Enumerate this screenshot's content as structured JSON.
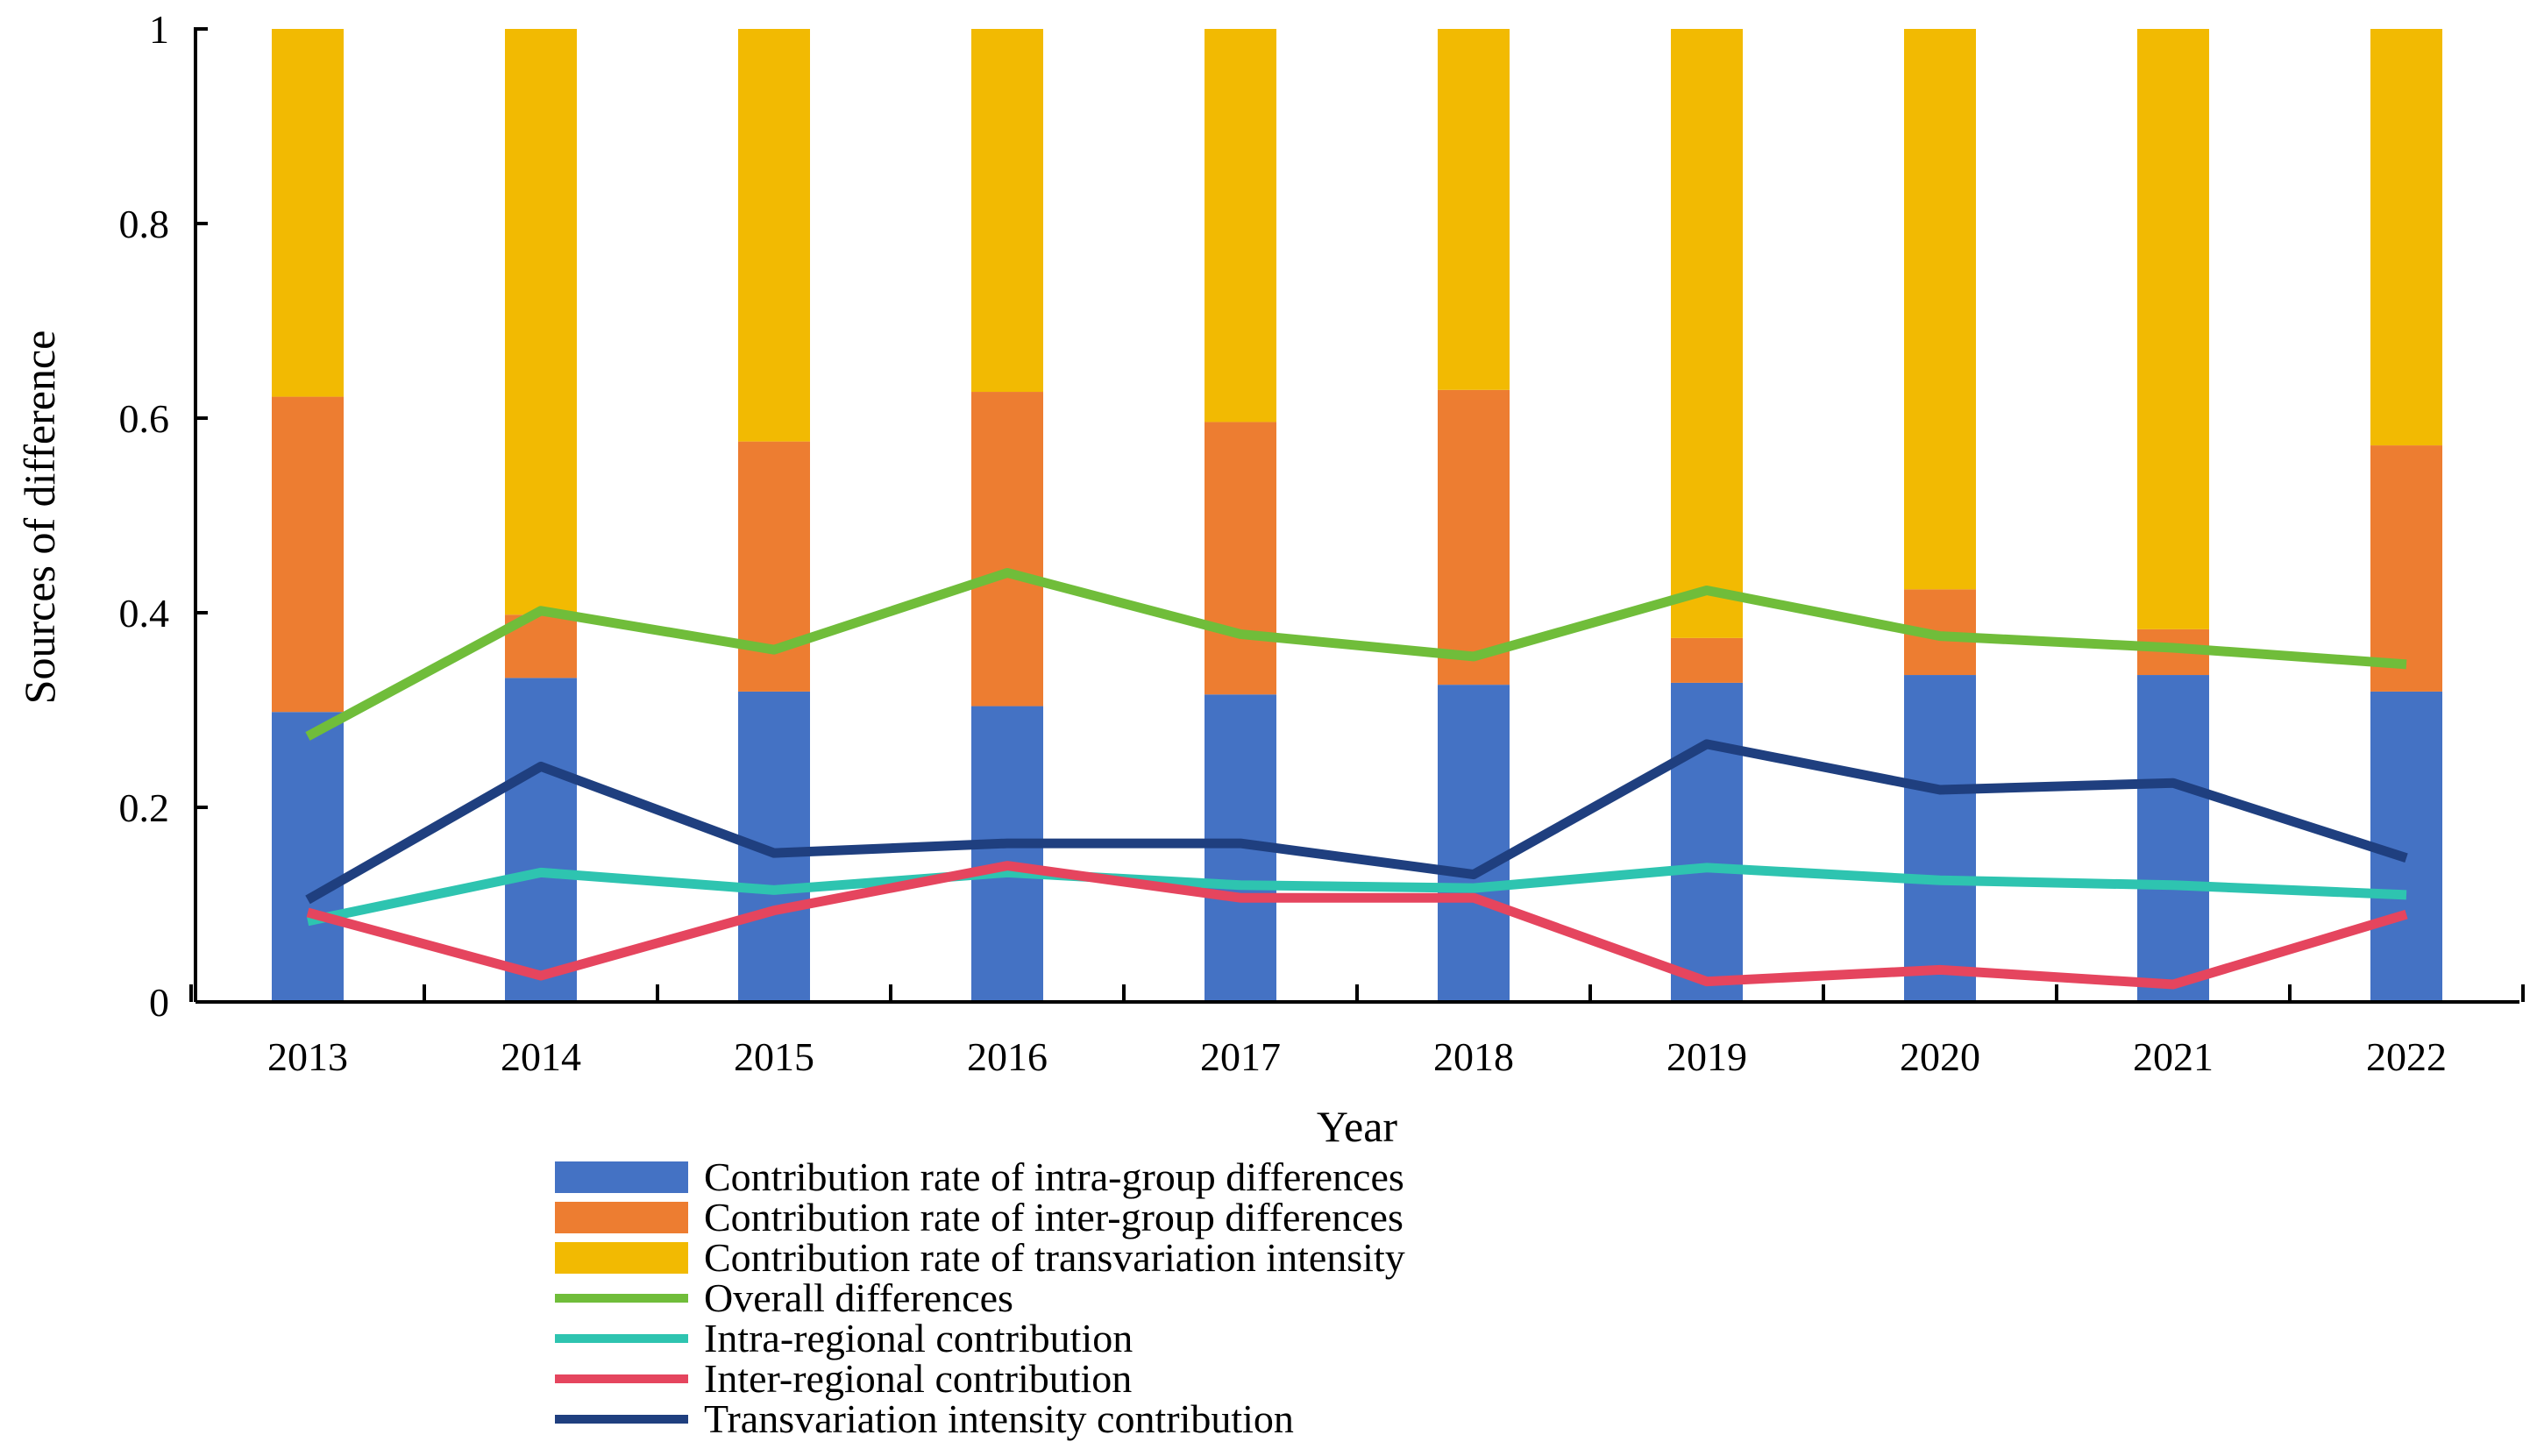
{
  "chart_data": {
    "type": "bar+line",
    "title": "",
    "xlabel": "Year",
    "ylabel": "Sources of difference",
    "ylim": [
      0,
      1
    ],
    "yticks": [
      "0",
      "0.2",
      "0.4",
      "0.6",
      "0.8",
      "1"
    ],
    "ytick_values": [
      0,
      0.2,
      0.4,
      0.6,
      0.8,
      1
    ],
    "categories": [
      "2013",
      "2014",
      "2015",
      "2016",
      "2017",
      "2018",
      "2019",
      "2020",
      "2021",
      "2022"
    ],
    "legend_position": "bottom",
    "bar_series": [
      {
        "name": "Contribution rate of intra-group differences",
        "color": "#4472C4",
        "values": [
          0.298,
          0.333,
          0.319,
          0.304,
          0.316,
          0.326,
          0.328,
          0.336,
          0.336,
          0.319
        ]
      },
      {
        "name": "Contribution rate of inter-group differences",
        "color": "#ED7D31",
        "values": [
          0.324,
          0.065,
          0.257,
          0.323,
          0.28,
          0.303,
          0.046,
          0.088,
          0.047,
          0.253
        ]
      },
      {
        "name": "Contribution rate of transvariation intensity",
        "color": "#F2BA02",
        "values": [
          0.378,
          0.602,
          0.424,
          0.373,
          0.404,
          0.371,
          0.626,
          0.576,
          0.617,
          0.428
        ]
      }
    ],
    "line_series": [
      {
        "name": "Overall differences",
        "color": "#70BD3A",
        "values": [
          0.273,
          0.402,
          0.362,
          0.441,
          0.378,
          0.355,
          0.423,
          0.376,
          0.364,
          0.347
        ]
      },
      {
        "name": "Intra-regional contribution",
        "color": "#2EC4B0",
        "values": [
          0.083,
          0.133,
          0.115,
          0.133,
          0.12,
          0.117,
          0.138,
          0.125,
          0.12,
          0.11
        ]
      },
      {
        "name": "Inter-regional contribution",
        "color": "#E5455E",
        "values": [
          0.092,
          0.027,
          0.094,
          0.14,
          0.107,
          0.107,
          0.021,
          0.033,
          0.018,
          0.09
        ]
      },
      {
        "name": "Transvariation intensity contribution",
        "color": "#1F3F7F",
        "values": [
          0.105,
          0.242,
          0.153,
          0.163,
          0.163,
          0.131,
          0.265,
          0.218,
          0.225,
          0.148
        ]
      }
    ]
  }
}
